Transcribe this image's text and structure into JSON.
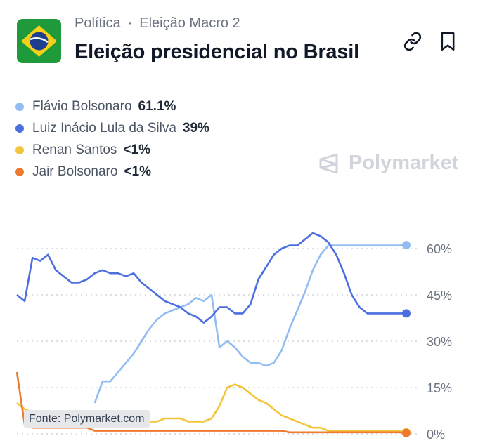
{
  "header": {
    "category": "Política",
    "separator": "·",
    "subcategory": "Eleição Macro 2",
    "title": "Eleição presidencial no Brasil"
  },
  "icons": {
    "flag": "brazil-flag-icon",
    "link": "link-icon",
    "bookmark": "bookmark-icon",
    "brand": "polymarket-logo-icon"
  },
  "legend": [
    {
      "name": "Flávio Bolsonaro",
      "value": "61.1%",
      "color": "#93bdf2"
    },
    {
      "name": "Luiz Inácio Lula da Silva",
      "value": "39%",
      "color": "#4c6fe0"
    },
    {
      "name": "Renan Santos",
      "value": "<1%",
      "color": "#f2c53d"
    },
    {
      "name": "Jair Bolsonaro",
      "value": "<1%",
      "color": "#ee7a2f"
    }
  ],
  "watermark": "Polymarket",
  "source": "Fonte: Polymarket.com",
  "chart_data": {
    "type": "line",
    "x": [
      0,
      2,
      4,
      6,
      8,
      10,
      12,
      14,
      16,
      18,
      20,
      22,
      24,
      26,
      28,
      30,
      32,
      34,
      36,
      38,
      40,
      42,
      44,
      46,
      48,
      50,
      52,
      54,
      56,
      58,
      60,
      62,
      64,
      66,
      68,
      70,
      72,
      74,
      76,
      78,
      80,
      82,
      84,
      86,
      88,
      90,
      92,
      94,
      96,
      98,
      100
    ],
    "yticks": [
      "60%",
      "45%",
      "30%",
      "15%",
      "0%"
    ],
    "ylim": [
      0,
      70
    ],
    "grid": true,
    "series": [
      {
        "name": "Luiz Inácio Lula da Silva",
        "color": "#4c6fe0",
        "values": [
          45,
          43,
          57,
          56,
          58,
          53,
          51,
          49,
          49,
          50,
          52,
          53,
          52,
          52,
          51,
          52,
          49,
          47,
          45,
          43,
          42,
          41,
          39,
          38,
          36,
          38,
          41,
          41,
          39,
          39,
          42,
          50,
          54,
          58,
          60,
          61,
          61,
          63,
          65,
          64,
          62,
          58,
          52,
          45,
          41,
          39,
          39,
          39,
          39,
          39,
          39
        ]
      },
      {
        "name": "Flávio Bolsonaro",
        "color": "#93bdf2",
        "values": [
          null,
          null,
          null,
          null,
          null,
          null,
          null,
          null,
          null,
          null,
          10,
          17,
          17,
          20,
          23,
          26,
          30,
          34,
          37,
          39,
          40,
          41,
          42,
          44,
          43,
          45,
          28,
          30,
          28,
          25,
          23,
          23,
          22,
          23,
          27,
          34,
          40,
          46,
          53,
          58,
          61,
          61,
          61,
          61,
          61,
          61,
          61,
          61,
          61,
          61,
          61.1
        ]
      },
      {
        "name": "Renan Santos",
        "color": "#f2c53d",
        "values": [
          10,
          8,
          7,
          6,
          6,
          6,
          6,
          6,
          6,
          6,
          5,
          5,
          5,
          5,
          5,
          5,
          4,
          4,
          4,
          5,
          5,
          5,
          4,
          4,
          4,
          5,
          9,
          15,
          16,
          15,
          13,
          11,
          10,
          8,
          6,
          5,
          4,
          3,
          2,
          2,
          1,
          1,
          1,
          1,
          1,
          1,
          1,
          1,
          1,
          1,
          0.5
        ]
      },
      {
        "name": "Jair Bolsonaro",
        "color": "#ee7a2f",
        "values": [
          20,
          3,
          2,
          2,
          2,
          2,
          2,
          2,
          2,
          2,
          1,
          1,
          1,
          1,
          1,
          1,
          1,
          1,
          1,
          1,
          1,
          1,
          1,
          1,
          1,
          1,
          1,
          1,
          1,
          1,
          1,
          1,
          1,
          1,
          1,
          0.5,
          0.5,
          0.5,
          0.5,
          0.5,
          0.5,
          0.5,
          0.5,
          0.5,
          0.5,
          0.5,
          0.5,
          0.5,
          0.5,
          0.5,
          0.3
        ]
      }
    ]
  }
}
